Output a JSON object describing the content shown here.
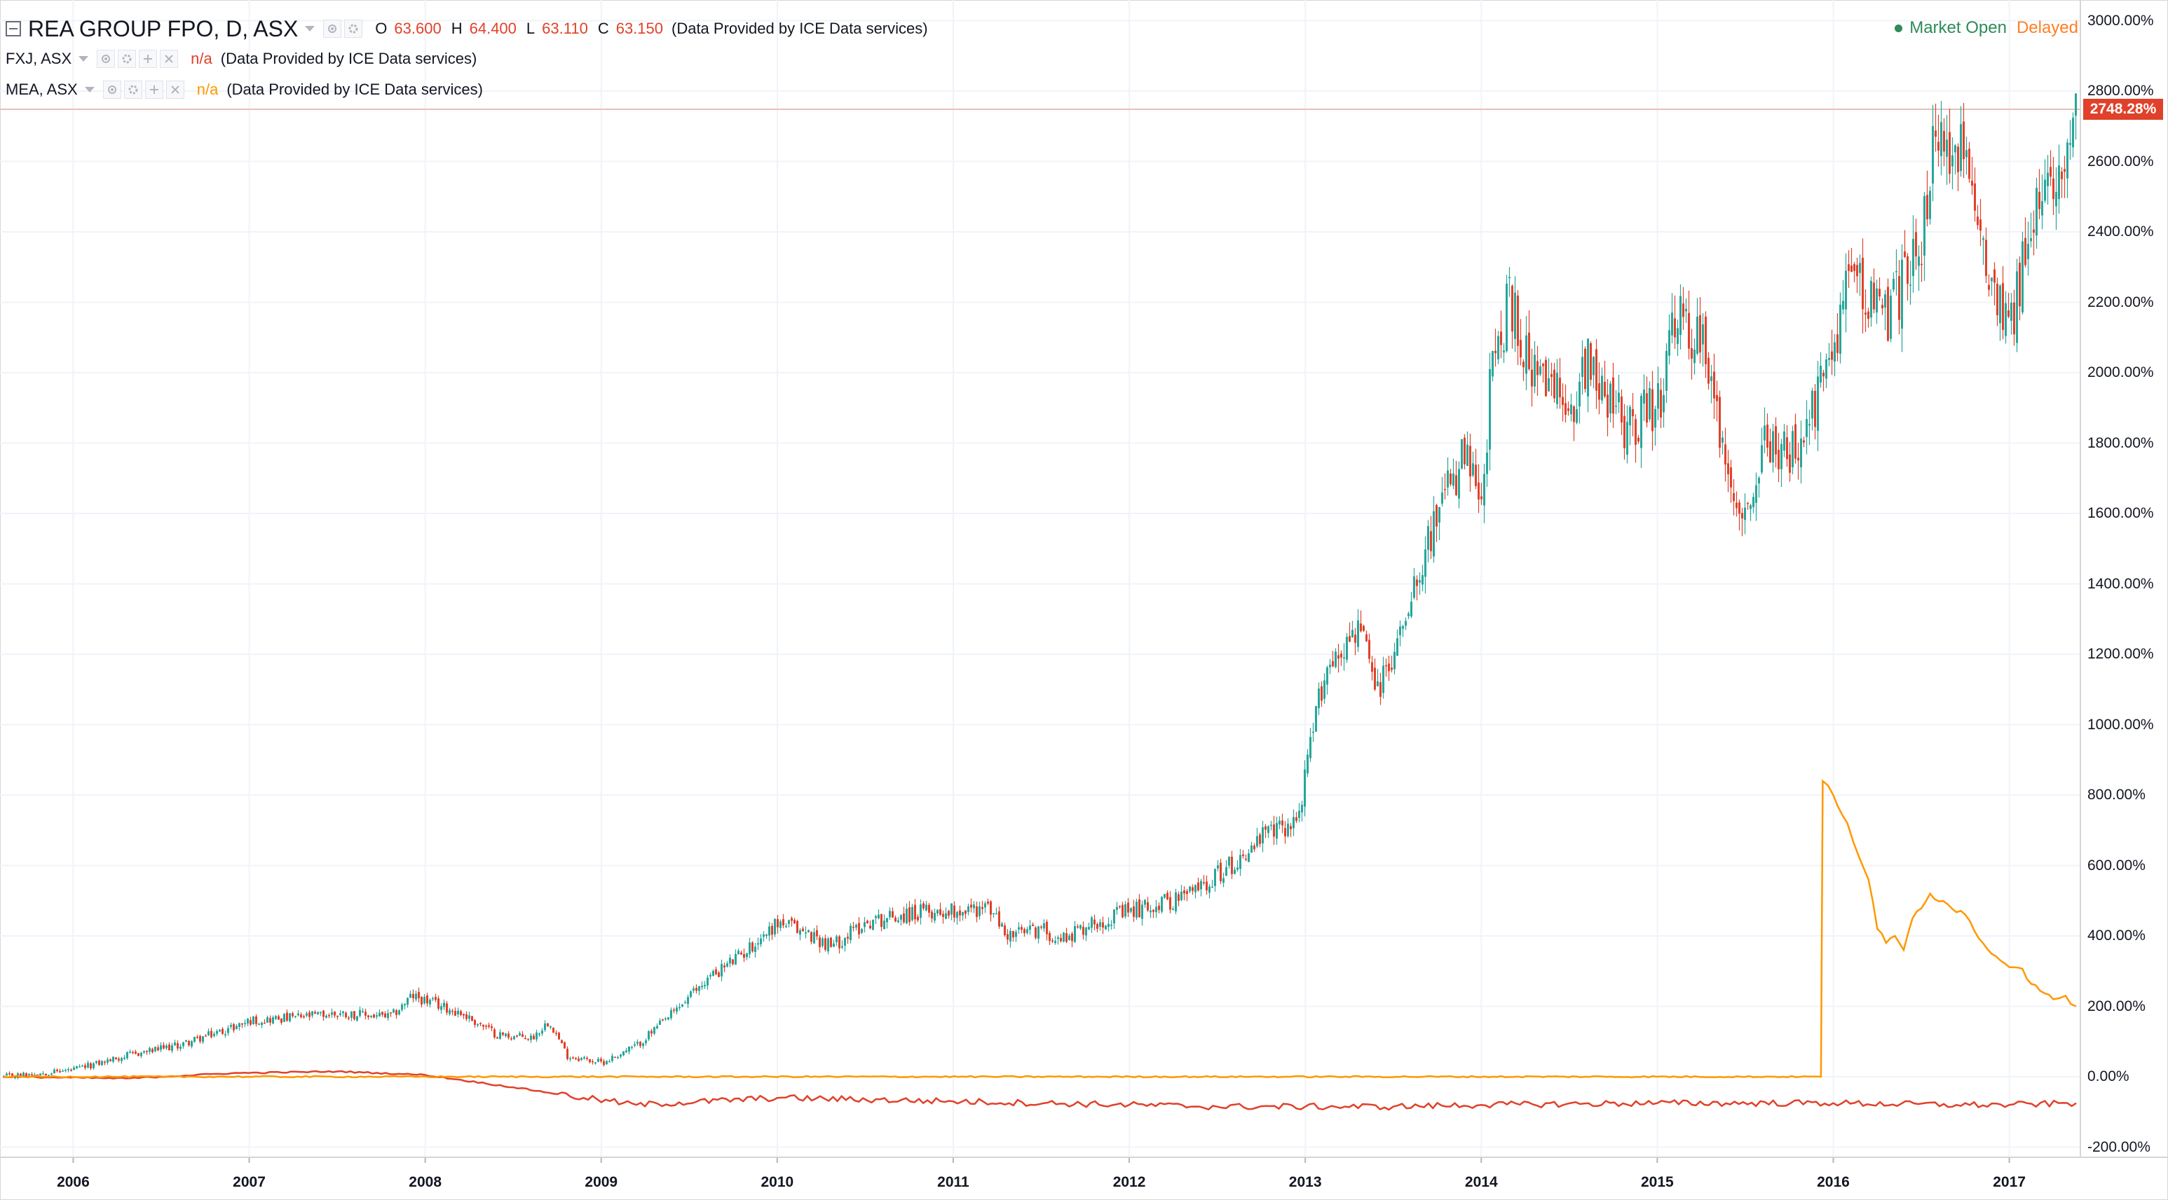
{
  "legend": {
    "main": {
      "name": "REA GROUP FPO, D, ASX",
      "o_key": "O",
      "o_val": "63.600",
      "h_key": "H",
      "h_val": "64.400",
      "l_key": "L",
      "l_val": "63.110",
      "c_key": "C",
      "c_val": "63.150",
      "provider": "(Data Provided by ICE Data services)"
    },
    "compare": [
      {
        "name": "FXJ, ASX",
        "value": "n/a",
        "provider": "(Data Provided by ICE Data services)",
        "color": "#e0412a"
      },
      {
        "name": "MEA, ASX",
        "value": "n/a",
        "provider": "(Data Provided by ICE Data services)",
        "color": "#ff9800"
      }
    ]
  },
  "status": {
    "market": "Market Open",
    "feed": "Delayed"
  },
  "last_value_label": "2748.28%",
  "y_tick_labels": [
    "3000.00%",
    "2800.00%",
    "2600.00%",
    "2400.00%",
    "2200.00%",
    "2000.00%",
    "1800.00%",
    "1600.00%",
    "1400.00%",
    "1200.00%",
    "1000.00%",
    "800.00%",
    "600.00%",
    "400.00%",
    "200.00%",
    "0.00%",
    "-200.00%"
  ],
  "x_tick_labels": [
    "2006",
    "2007",
    "2008",
    "2009",
    "2010",
    "2011",
    "2012",
    "2013",
    "2014",
    "2015",
    "2016",
    "2017"
  ],
  "colors": {
    "up": "#26a69a",
    "down": "#e0412a",
    "fxj": "#e0412a",
    "mea": "#ff9800",
    "grid": "#f0f3fa",
    "last_line": "#e8c0b8"
  },
  "chart_data": {
    "type": "line",
    "ylim": [
      -200,
      3000
    ],
    "xlim": [
      2005.6,
      2017.38
    ],
    "grid": true,
    "y_axis_format": "percent",
    "series": [
      {
        "name": "REA GROUP FPO, D, ASX",
        "style": "candlestick",
        "x": [
          2005.6,
          2006.0,
          2006.3,
          2006.6,
          2006.9,
          2007.0,
          2007.3,
          2007.5,
          2007.8,
          2007.92,
          2008.2,
          2008.4,
          2008.6,
          2008.7,
          2008.8,
          2009.0,
          2009.2,
          2009.4,
          2009.6,
          2009.8,
          2010.0,
          2010.2,
          2010.3,
          2010.5,
          2010.7,
          2010.9,
          2011.2,
          2011.3,
          2011.5,
          2011.6,
          2011.8,
          2012.0,
          2012.3,
          2012.6,
          2012.75,
          2012.95,
          2013.1,
          2013.3,
          2013.4,
          2013.5,
          2013.6,
          2013.75,
          2013.9,
          2014.0,
          2014.05,
          2014.15,
          2014.3,
          2014.5,
          2014.6,
          2014.8,
          2015.0,
          2015.1,
          2015.3,
          2015.35,
          2015.5,
          2015.6,
          2015.8,
          2015.95,
          2016.1,
          2016.3,
          2016.5,
          2016.55,
          2016.7,
          2016.85,
          2017.0,
          2017.15,
          2017.3,
          2017.38
        ],
        "y": [
          0,
          20,
          60,
          90,
          140,
          160,
          170,
          180,
          170,
          230,
          180,
          120,
          110,
          160,
          60,
          40,
          90,
          180,
          280,
          350,
          440,
          400,
          370,
          440,
          460,
          470,
          480,
          400,
          420,
          390,
          440,
          470,
          510,
          610,
          680,
          730,
          1150,
          1280,
          1090,
          1200,
          1400,
          1600,
          1760,
          1600,
          2000,
          2200,
          1980,
          1900,
          2050,
          1850,
          1900,
          2150,
          2040,
          1780,
          1600,
          1800,
          1760,
          2000,
          2300,
          2150,
          2400,
          2600,
          2650,
          2350,
          2150,
          2450,
          2650,
          2748.28
        ]
      },
      {
        "name": "FXJ, ASX",
        "style": "line",
        "x": [
          2005.6,
          2006.3,
          2006.9,
          2007.5,
          2008.0,
          2008.5,
          2008.9,
          2009.2,
          2010.0,
          2011.0,
          2012.0,
          2012.5,
          2013.0,
          2013.5,
          2014.0,
          2015.0,
          2016.0,
          2016.7,
          2017.0,
          2017.38
        ],
        "y": [
          0,
          -5,
          10,
          15,
          5,
          -30,
          -60,
          -80,
          -60,
          -70,
          -80,
          -85,
          -85,
          -85,
          -80,
          -75,
          -75,
          -80,
          -80,
          -75
        ]
      },
      {
        "name": "MEA, ASX",
        "style": "line",
        "x": [
          2005.6,
          2015.93,
          2015.94,
          2016.0,
          2016.08,
          2016.15,
          2016.2,
          2016.25,
          2016.3,
          2016.35,
          2016.4,
          2016.45,
          2016.55,
          2016.65,
          2016.75,
          2016.85,
          2016.95,
          2017.05,
          2017.15,
          2017.25,
          2017.32,
          2017.38
        ],
        "y": [
          0,
          0,
          840,
          800,
          720,
          620,
          560,
          420,
          380,
          400,
          360,
          450,
          520,
          490,
          460,
          380,
          330,
          310,
          260,
          220,
          230,
          200
        ]
      }
    ]
  }
}
